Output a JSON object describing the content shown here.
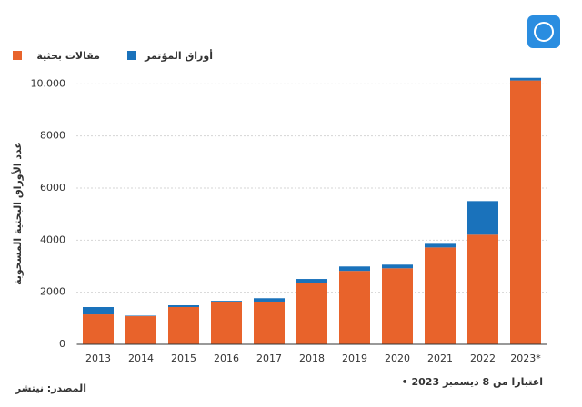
{
  "chart_data": {
    "type": "stacked-bar",
    "y_label": "عدد الأوراق البحثية المسحوبة",
    "categories": [
      "2013",
      "2014",
      "2015",
      "2016",
      "2017",
      "2018",
      "2019",
      "2020",
      "2021",
      "2022",
      "2023*"
    ],
    "series": [
      {
        "name": "مقالات بحثية",
        "color": "#e8632b",
        "values": [
          1150,
          1080,
          1430,
          1640,
          1640,
          2370,
          2820,
          2920,
          3720,
          4210,
          10130
        ]
      },
      {
        "name": "أوراق المؤتمر",
        "color": "#1a72bb",
        "values": [
          280,
          20,
          70,
          30,
          130,
          140,
          170,
          140,
          140,
          1290,
          100
        ]
      }
    ],
    "ylim": [
      0,
      10500
    ],
    "yticks": [
      0,
      2000,
      4000,
      6000,
      8000,
      {
        "value": 10000,
        "label": "10.000"
      }
    ],
    "grid": true,
    "footnote": "• اعتبارا من 8 ديسمبر 2023",
    "source": "المصدر: نيتشر"
  }
}
